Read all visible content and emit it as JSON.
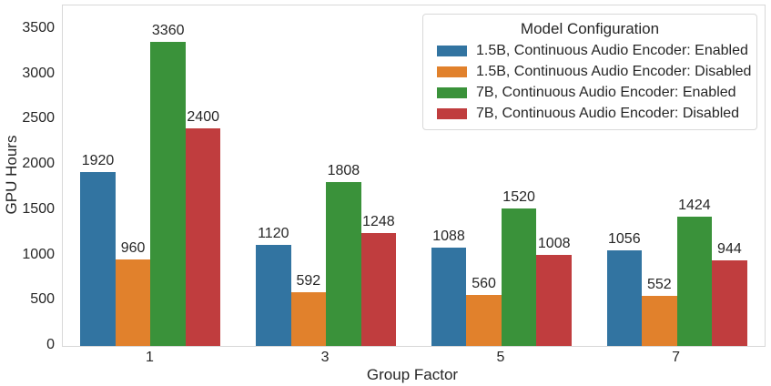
{
  "chart_data": {
    "type": "bar",
    "title": "",
    "xlabel": "Group Factor",
    "ylabel": "GPU Hours",
    "categories": [
      "1",
      "3",
      "5",
      "7"
    ],
    "series": [
      {
        "name": "1.5B, Continuous Audio Encoder: Enabled",
        "color": "#3274a1",
        "values": [
          1920,
          1120,
          1088,
          1056
        ]
      },
      {
        "name": "1.5B, Continuous Audio Encoder: Disabled",
        "color": "#e1812c",
        "values": [
          960,
          592,
          560,
          552
        ]
      },
      {
        "name": "7B, Continuous Audio Encoder: Enabled",
        "color": "#3a923a",
        "values": [
          3360,
          1808,
          1520,
          1424
        ]
      },
      {
        "name": "7B, Continuous Audio Encoder: Disabled",
        "color": "#c03d3e",
        "values": [
          2400,
          1248,
          1008,
          944
        ]
      }
    ],
    "legend": {
      "title": "Model Configuration",
      "position": "upper right"
    },
    "y_ticks": [
      0,
      500,
      1000,
      1500,
      2000,
      2500,
      3000,
      3500
    ],
    "ylim": [
      0,
      3760
    ],
    "bar_labels": true,
    "grid": false,
    "background": "#ffffff",
    "spine_color": "#d8d8d8",
    "text_color": "#262626"
  }
}
